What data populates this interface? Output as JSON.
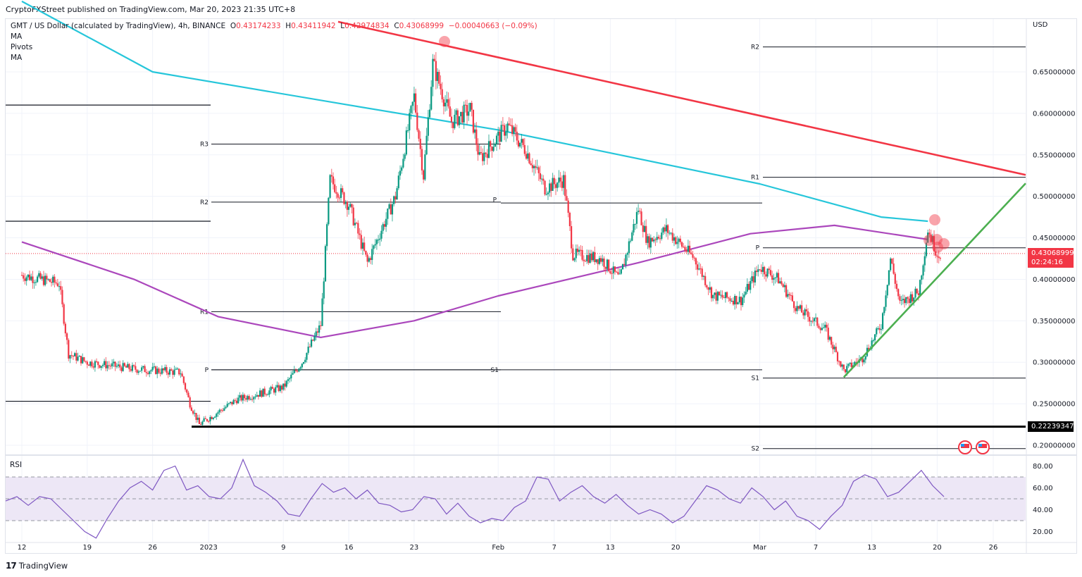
{
  "header": {
    "publisher_line": "CryptoFXStreet published on TradingView.com, Mar 20, 2023 21:35 UTC+8",
    "symbol_line": "GMT / US Dollar (calculated by TradingView), 4h, BINANCE",
    "ohlc": {
      "open_label": "O",
      "open": "0.43174233",
      "high_label": "H",
      "high": "0.43411942",
      "low_label": "L",
      "low": "0.42974834",
      "close_label": "C",
      "close": "0.43068999",
      "change": "−0.00040663 (−0.09%)"
    },
    "indicators": [
      "MA",
      "Pivots",
      "MA"
    ]
  },
  "price_axis": {
    "currency": "USD",
    "ticks": [
      "0.65000000",
      "0.60000000",
      "0.55000000",
      "0.50000000",
      "0.45000000",
      "0.40000000",
      "0.35000000",
      "0.30000000",
      "0.25000000",
      "0.20000000"
    ],
    "current_price": "0.43068999",
    "countdown": "02:24:16",
    "low_marker": "0.22239347"
  },
  "rsi": {
    "label": "RSI",
    "ticks": [
      "80.00",
      "60.00",
      "40.00",
      "20.00"
    ]
  },
  "time_axis": {
    "ticks": [
      "12",
      "19",
      "26",
      "2023",
      "9",
      "16",
      "23",
      "Feb",
      "7",
      "13",
      "20",
      "Mar",
      "7",
      "13",
      "20",
      "26"
    ]
  },
  "pivot_labels": {
    "left": [
      "R3",
      "R2",
      "R1",
      "P"
    ],
    "mid": [
      "P",
      "S1"
    ],
    "right": [
      "R2",
      "R1",
      "P",
      "S1",
      "S2"
    ]
  },
  "footer": {
    "brand": "TradingView",
    "logo": "17"
  },
  "colors": {
    "bull": "#089981",
    "bear": "#f23645",
    "ma_cyan": "#26c6da",
    "ma_purple": "#ab47bc",
    "red_trendline": "#f23645",
    "green_trendline": "#4caf50",
    "rsi_line": "#7e57c2",
    "rsi_band": "#ede7f6"
  },
  "chart_data": {
    "type": "candlestick",
    "title": "GMT / US Dollar, 4h, BINANCE",
    "xlabel": "",
    "ylabel": "USD",
    "ylim": [
      0.18,
      0.7
    ],
    "grid": true,
    "x_ticks": [
      "12",
      "19",
      "26",
      "2023",
      "9",
      "16",
      "23",
      "Feb",
      "7",
      "13",
      "20",
      "Mar",
      "7",
      "13",
      "20",
      "26"
    ],
    "y_ticks": [
      0.2,
      0.25,
      0.3,
      0.35,
      0.4,
      0.45,
      0.5,
      0.55,
      0.6,
      0.65
    ],
    "price_path_closes_approx": [
      {
        "date": "Dec 12",
        "close": 0.405
      },
      {
        "date": "Dec 16",
        "close": 0.395
      },
      {
        "date": "Dec 17",
        "close": 0.31
      },
      {
        "date": "Dec 19",
        "close": 0.3
      },
      {
        "date": "Dec 24",
        "close": 0.292
      },
      {
        "date": "Dec 29",
        "close": 0.288
      },
      {
        "date": "Dec 30",
        "close": 0.25
      },
      {
        "date": "Dec 31",
        "close": 0.225
      },
      {
        "date": "Jan 4",
        "close": 0.255
      },
      {
        "date": "Jan 9",
        "close": 0.27
      },
      {
        "date": "Jan 11",
        "close": 0.3
      },
      {
        "date": "Jan 13",
        "close": 0.345
      },
      {
        "date": "Jan 14",
        "close": 0.52
      },
      {
        "date": "Jan 16",
        "close": 0.49
      },
      {
        "date": "Jan 18",
        "close": 0.42
      },
      {
        "date": "Jan 21",
        "close": 0.5
      },
      {
        "date": "Jan 23",
        "close": 0.62
      },
      {
        "date": "Jan 24",
        "close": 0.525
      },
      {
        "date": "Jan 25",
        "close": 0.66
      },
      {
        "date": "Jan 27",
        "close": 0.59
      },
      {
        "date": "Jan 29",
        "close": 0.605
      },
      {
        "date": "Jan 30",
        "close": 0.545
      },
      {
        "date": "Feb 2",
        "close": 0.585
      },
      {
        "date": "Feb 4",
        "close": 0.555
      },
      {
        "date": "Feb 6",
        "close": 0.51
      },
      {
        "date": "Feb 8",
        "close": 0.52
      },
      {
        "date": "Feb 9",
        "close": 0.43
      },
      {
        "date": "Feb 12",
        "close": 0.425
      },
      {
        "date": "Feb 14",
        "close": 0.4
      },
      {
        "date": "Feb 16",
        "close": 0.485
      },
      {
        "date": "Feb 17",
        "close": 0.445
      },
      {
        "date": "Feb 19",
        "close": 0.46
      },
      {
        "date": "Feb 22",
        "close": 0.425
      },
      {
        "date": "Feb 24",
        "close": 0.38
      },
      {
        "date": "Feb 27",
        "close": 0.375
      },
      {
        "date": "Mar 1",
        "close": 0.415
      },
      {
        "date": "Mar 3",
        "close": 0.4
      },
      {
        "date": "Mar 5",
        "close": 0.365
      },
      {
        "date": "Mar 8",
        "close": 0.34
      },
      {
        "date": "Mar 10",
        "close": 0.29
      },
      {
        "date": "Mar 12",
        "close": 0.305
      },
      {
        "date": "Mar 14",
        "close": 0.345
      },
      {
        "date": "Mar 15",
        "close": 0.425
      },
      {
        "date": "Mar 16",
        "close": 0.37
      },
      {
        "date": "Mar 18",
        "close": 0.385
      },
      {
        "date": "Mar 19",
        "close": 0.46
      },
      {
        "date": "Mar 20",
        "close": 0.431
      }
    ],
    "moving_averages": [
      {
        "name": "MA (cyan)",
        "points": [
          [
            0.68,
            "Dec 10"
          ],
          [
            0.65,
            "Dec 26"
          ],
          [
            0.61,
            "Jan 16"
          ],
          [
            0.58,
            "Feb 1"
          ],
          [
            0.55,
            "Feb 14"
          ],
          [
            0.515,
            "Mar 1"
          ],
          [
            0.475,
            "Mar 14"
          ],
          [
            0.47,
            "Mar 19"
          ]
        ]
      },
      {
        "name": "MA (purple)",
        "points": [
          [
            0.445,
            "Dec 10"
          ],
          [
            0.4,
            "Dec 24"
          ],
          [
            0.355,
            "Jan 2"
          ],
          [
            0.33,
            "Jan 13"
          ],
          [
            0.35,
            "Jan 23"
          ],
          [
            0.38,
            "Feb 1"
          ],
          [
            0.42,
            "Feb 16"
          ],
          [
            0.455,
            "Feb 28"
          ],
          [
            0.465,
            "Mar 9"
          ],
          [
            0.448,
            "Mar 19"
          ]
        ]
      }
    ],
    "pivot_levels": {
      "period_1_Dec": {
        "R3": 0.563,
        "R2": 0.493,
        "R1": 0.361,
        "P": 0.291
      },
      "period_1_lines_unlabeled": [
        0.61,
        0.47,
        0.253
      ],
      "period_2_Feb": {
        "P": 0.492,
        "S1": 0.291
      },
      "period_3_Mar": {
        "R2": 0.68,
        "R1": 0.523,
        "P": 0.438,
        "S1": 0.281,
        "S2": 0.196
      }
    },
    "horizontal_support": 0.22239347,
    "trendlines": [
      {
        "name": "descending resistance",
        "color": "red",
        "from": {
          "date": "Jan 25",
          "price": 0.685
        },
        "to": {
          "date": "Mar 29",
          "price": 0.527
        }
      },
      {
        "name": "ascending support",
        "color": "green",
        "from": {
          "date": "Mar 10",
          "price": 0.282
        },
        "to": {
          "date": "Mar 29",
          "price": 0.51
        }
      }
    ],
    "annotations": [
      "touch marker at Jan 25 high on red trendline",
      "rejection markers around Mar 19-20 near 0.44-0.47",
      "two US economic event flags near Mar 22-24"
    ],
    "rsi": {
      "ylim": [
        10,
        90
      ],
      "bands": [
        30,
        50,
        70
      ],
      "values_approx": [
        48,
        52,
        44,
        52,
        50,
        40,
        30,
        20,
        14,
        32,
        48,
        60,
        66,
        58,
        76,
        80,
        58,
        62,
        52,
        50,
        60,
        86,
        62,
        56,
        48,
        36,
        34,
        50,
        64,
        56,
        60,
        50,
        58,
        46,
        44,
        38,
        40,
        52,
        50,
        36,
        46,
        34,
        28,
        32,
        30,
        42,
        48,
        70,
        68,
        48,
        56,
        62,
        52,
        46,
        54,
        44,
        36,
        40,
        36,
        28,
        34,
        48,
        62,
        58,
        50,
        46,
        60,
        52,
        40,
        48,
        34,
        30,
        22,
        34,
        44,
        66,
        72,
        68,
        52,
        56,
        66,
        76,
        62,
        52
      ]
    }
  }
}
